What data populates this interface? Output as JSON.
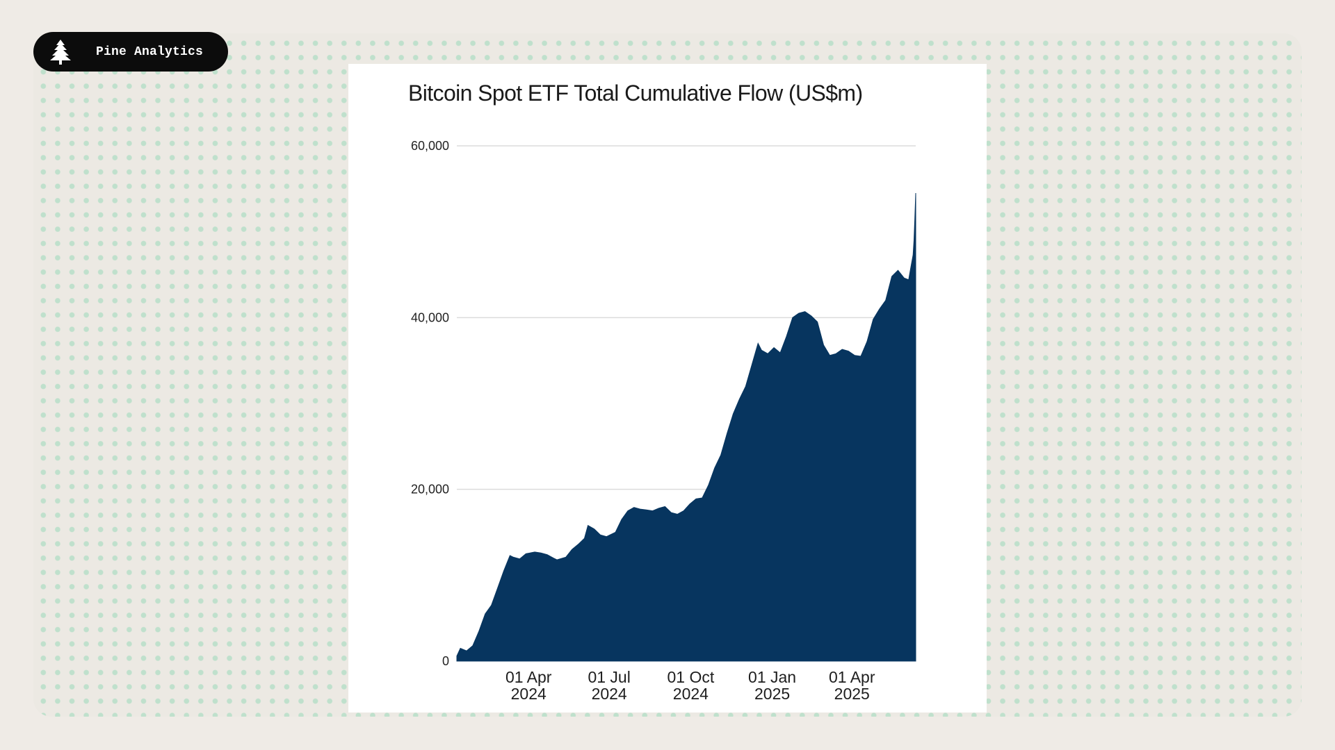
{
  "brand": {
    "name": "Pine Analytics",
    "icon": "pine-tree-icon"
  },
  "colors": {
    "background": "#efebe6",
    "dot": "#bfe0cc",
    "pill": "#0c0c0c",
    "area_fill": "#07355f",
    "gridline": "#dcdcdc"
  },
  "chart_data": {
    "type": "area",
    "title": "Bitcoin Spot ETF Total Cumulative Flow (US$m)",
    "xlabel": "",
    "ylabel": "",
    "ylim": [
      0,
      60000
    ],
    "yticks": [
      {
        "value": 0,
        "label": "0"
      },
      {
        "value": 20000,
        "label": "20,000"
      },
      {
        "value": 40000,
        "label": "40,000"
      },
      {
        "value": 60000,
        "label": "60,000"
      }
    ],
    "xrange": [
      "2024-01-11",
      "2025-06-12"
    ],
    "xticks": [
      {
        "date": "2024-04-01",
        "line1": "01 Apr",
        "line2": "2024"
      },
      {
        "date": "2024-07-01",
        "line1": "01 Jul",
        "line2": "2024"
      },
      {
        "date": "2024-10-01",
        "line1": "01 Oct",
        "line2": "2024"
      },
      {
        "date": "2025-01-01",
        "line1": "01 Jan",
        "line2": "2025"
      },
      {
        "date": "2025-04-01",
        "line1": "01 Apr",
        "line2": "2025"
      }
    ],
    "grid": true,
    "series": [
      {
        "name": "Bitcoin Spot ETF Total Cumulative Flow",
        "points": [
          [
            "2024-01-11",
            600
          ],
          [
            "2024-01-15",
            1500
          ],
          [
            "2024-01-22",
            1200
          ],
          [
            "2024-01-29",
            1800
          ],
          [
            "2024-02-05",
            3500
          ],
          [
            "2024-02-12",
            5500
          ],
          [
            "2024-02-19",
            6500
          ],
          [
            "2024-02-26",
            8500
          ],
          [
            "2024-03-04",
            10500
          ],
          [
            "2024-03-11",
            12300
          ],
          [
            "2024-03-15",
            12100
          ],
          [
            "2024-03-22",
            11900
          ],
          [
            "2024-03-29",
            12500
          ],
          [
            "2024-04-08",
            12700
          ],
          [
            "2024-04-15",
            12600
          ],
          [
            "2024-04-22",
            12400
          ],
          [
            "2024-04-29",
            12000
          ],
          [
            "2024-05-03",
            11800
          ],
          [
            "2024-05-13",
            12100
          ],
          [
            "2024-05-20",
            13000
          ],
          [
            "2024-05-27",
            13600
          ],
          [
            "2024-06-03",
            14300
          ],
          [
            "2024-06-07",
            15800
          ],
          [
            "2024-06-14",
            15400
          ],
          [
            "2024-06-21",
            14700
          ],
          [
            "2024-06-28",
            14500
          ],
          [
            "2024-07-08",
            15000
          ],
          [
            "2024-07-15",
            16500
          ],
          [
            "2024-07-22",
            17500
          ],
          [
            "2024-07-29",
            17900
          ],
          [
            "2024-08-05",
            17700
          ],
          [
            "2024-08-12",
            17600
          ],
          [
            "2024-08-19",
            17500
          ],
          [
            "2024-08-26",
            17800
          ],
          [
            "2024-09-02",
            18000
          ],
          [
            "2024-09-09",
            17300
          ],
          [
            "2024-09-16",
            17100
          ],
          [
            "2024-09-23",
            17500
          ],
          [
            "2024-09-30",
            18300
          ],
          [
            "2024-10-07",
            18900
          ],
          [
            "2024-10-14",
            19000
          ],
          [
            "2024-10-21",
            20500
          ],
          [
            "2024-10-28",
            22500
          ],
          [
            "2024-11-04",
            24000
          ],
          [
            "2024-11-11",
            26500
          ],
          [
            "2024-11-18",
            28800
          ],
          [
            "2024-11-25",
            30500
          ],
          [
            "2024-12-02",
            32000
          ],
          [
            "2024-12-09",
            34500
          ],
          [
            "2024-12-16",
            37000
          ],
          [
            "2024-12-20",
            36200
          ],
          [
            "2024-12-27",
            35800
          ],
          [
            "2025-01-03",
            36500
          ],
          [
            "2025-01-10",
            35900
          ],
          [
            "2025-01-17",
            37800
          ],
          [
            "2025-01-24",
            40000
          ],
          [
            "2025-01-31",
            40500
          ],
          [
            "2025-02-07",
            40700
          ],
          [
            "2025-02-14",
            40200
          ],
          [
            "2025-02-21",
            39500
          ],
          [
            "2025-02-28",
            36800
          ],
          [
            "2025-03-07",
            35600
          ],
          [
            "2025-03-14",
            35800
          ],
          [
            "2025-03-21",
            36300
          ],
          [
            "2025-03-28",
            36100
          ],
          [
            "2025-04-04",
            35600
          ],
          [
            "2025-04-11",
            35500
          ],
          [
            "2025-04-18",
            37200
          ],
          [
            "2025-04-25",
            39800
          ],
          [
            "2025-05-02",
            41000
          ],
          [
            "2025-05-09",
            42000
          ],
          [
            "2025-05-16",
            44800
          ],
          [
            "2025-05-23",
            45500
          ],
          [
            "2025-05-30",
            44600
          ],
          [
            "2025-06-04",
            44400
          ],
          [
            "2025-06-06",
            45600
          ],
          [
            "2025-06-09",
            47300
          ],
          [
            "2025-06-10",
            49000
          ],
          [
            "2025-06-11",
            51500
          ],
          [
            "2025-06-12",
            54500
          ]
        ]
      }
    ]
  }
}
